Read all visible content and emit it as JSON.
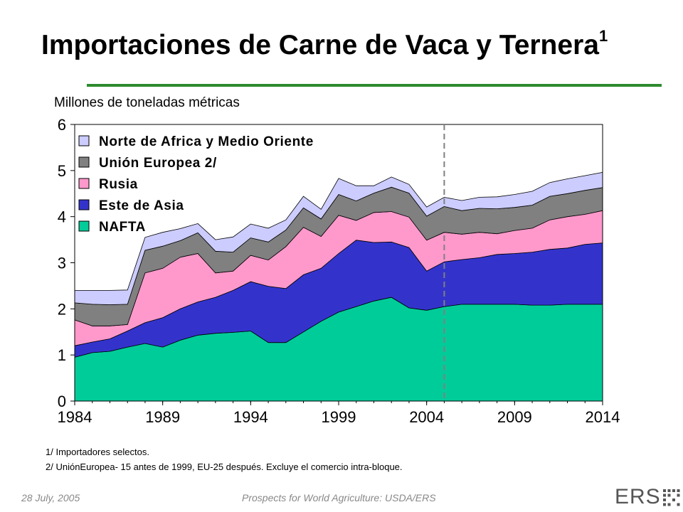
{
  "header": {
    "title": "Importaciones de Carne de Vaca y Ternera",
    "title_sup": "1",
    "rule_color": "#2e8b2e"
  },
  "chart_data": {
    "type": "area",
    "stacked": true,
    "ylabel": "Millones de toneladas métricas",
    "x": [
      1984,
      1985,
      1986,
      1987,
      1988,
      1989,
      1990,
      1991,
      1992,
      1993,
      1994,
      1995,
      1996,
      1997,
      1998,
      1999,
      2000,
      2001,
      2002,
      2003,
      2004,
      2005,
      2006,
      2007,
      2008,
      2009,
      2010,
      2011,
      2012,
      2013,
      2014
    ],
    "xticks": [
      "1984",
      "1989",
      "1994",
      "1999",
      "2004",
      "2009",
      "2014"
    ],
    "yticks": [
      "0",
      "1",
      "2",
      "3",
      "4",
      "5",
      "6"
    ],
    "ylim": [
      0,
      6
    ],
    "xlim": [
      1984,
      2014
    ],
    "projection_start": 2005,
    "grid": false,
    "legend_position": "top-left",
    "series": [
      {
        "name": "NAFTA",
        "color": "#00cc99",
        "values": [
          0.95,
          1.05,
          1.08,
          1.17,
          1.25,
          1.17,
          1.32,
          1.43,
          1.47,
          1.49,
          1.52,
          1.27,
          1.27,
          1.5,
          1.73,
          1.93,
          2.05,
          2.17,
          2.25,
          2.02,
          1.97,
          2.05,
          2.1,
          2.1,
          2.1,
          2.1,
          2.08,
          2.08,
          2.1,
          2.1,
          2.1
        ]
      },
      {
        "name": "Este de Asia",
        "color": "#3333cc",
        "values": [
          0.25,
          0.23,
          0.27,
          0.35,
          0.45,
          0.64,
          0.68,
          0.72,
          0.78,
          0.91,
          1.07,
          1.22,
          1.17,
          1.24,
          1.15,
          1.27,
          1.44,
          1.27,
          1.2,
          1.31,
          0.85,
          0.97,
          0.97,
          1.01,
          1.08,
          1.1,
          1.15,
          1.21,
          1.22,
          1.3,
          1.33
        ]
      },
      {
        "name": "Rusia",
        "color": "#ff99cc",
        "values": [
          0.56,
          0.35,
          0.28,
          0.14,
          1.08,
          1.07,
          1.12,
          1.05,
          0.53,
          0.42,
          0.57,
          0.57,
          0.91,
          1.03,
          0.69,
          0.83,
          0.43,
          0.65,
          0.66,
          0.66,
          0.67,
          0.64,
          0.55,
          0.55,
          0.45,
          0.5,
          0.52,
          0.64,
          0.68,
          0.65,
          0.7
        ]
      },
      {
        "name": "Unión Europea 2/",
        "color": "#808080",
        "values": [
          0.37,
          0.47,
          0.46,
          0.44,
          0.49,
          0.48,
          0.36,
          0.45,
          0.47,
          0.41,
          0.38,
          0.39,
          0.36,
          0.42,
          0.38,
          0.45,
          0.42,
          0.42,
          0.53,
          0.52,
          0.52,
          0.56,
          0.51,
          0.52,
          0.54,
          0.5,
          0.5,
          0.51,
          0.5,
          0.52,
          0.5
        ]
      },
      {
        "name": "Norte de Africa y Medio Oriente",
        "color": "#ccccff",
        "values": [
          0.27,
          0.3,
          0.31,
          0.31,
          0.28,
          0.3,
          0.26,
          0.2,
          0.25,
          0.33,
          0.3,
          0.3,
          0.22,
          0.25,
          0.21,
          0.35,
          0.33,
          0.16,
          0.22,
          0.19,
          0.2,
          0.2,
          0.22,
          0.24,
          0.26,
          0.28,
          0.3,
          0.3,
          0.32,
          0.32,
          0.33
        ]
      }
    ],
    "legend_order": [
      "Norte de Africa y Medio Oriente",
      "Unión Europea 2/",
      "Rusia",
      "Este de Asia",
      "NAFTA"
    ]
  },
  "notes": [
    "1/ Importadores  selectos.",
    "2/ UniónEuropea- 15  antes de 1999,  EU-25 después.  Excluye el comercio intra-bloque."
  ],
  "footer": {
    "date": "28 July, 2005",
    "source": "Prospects for World Agriculture:  USDA/ERS",
    "logo_text": "ERS",
    "logo_color": "#555555"
  }
}
